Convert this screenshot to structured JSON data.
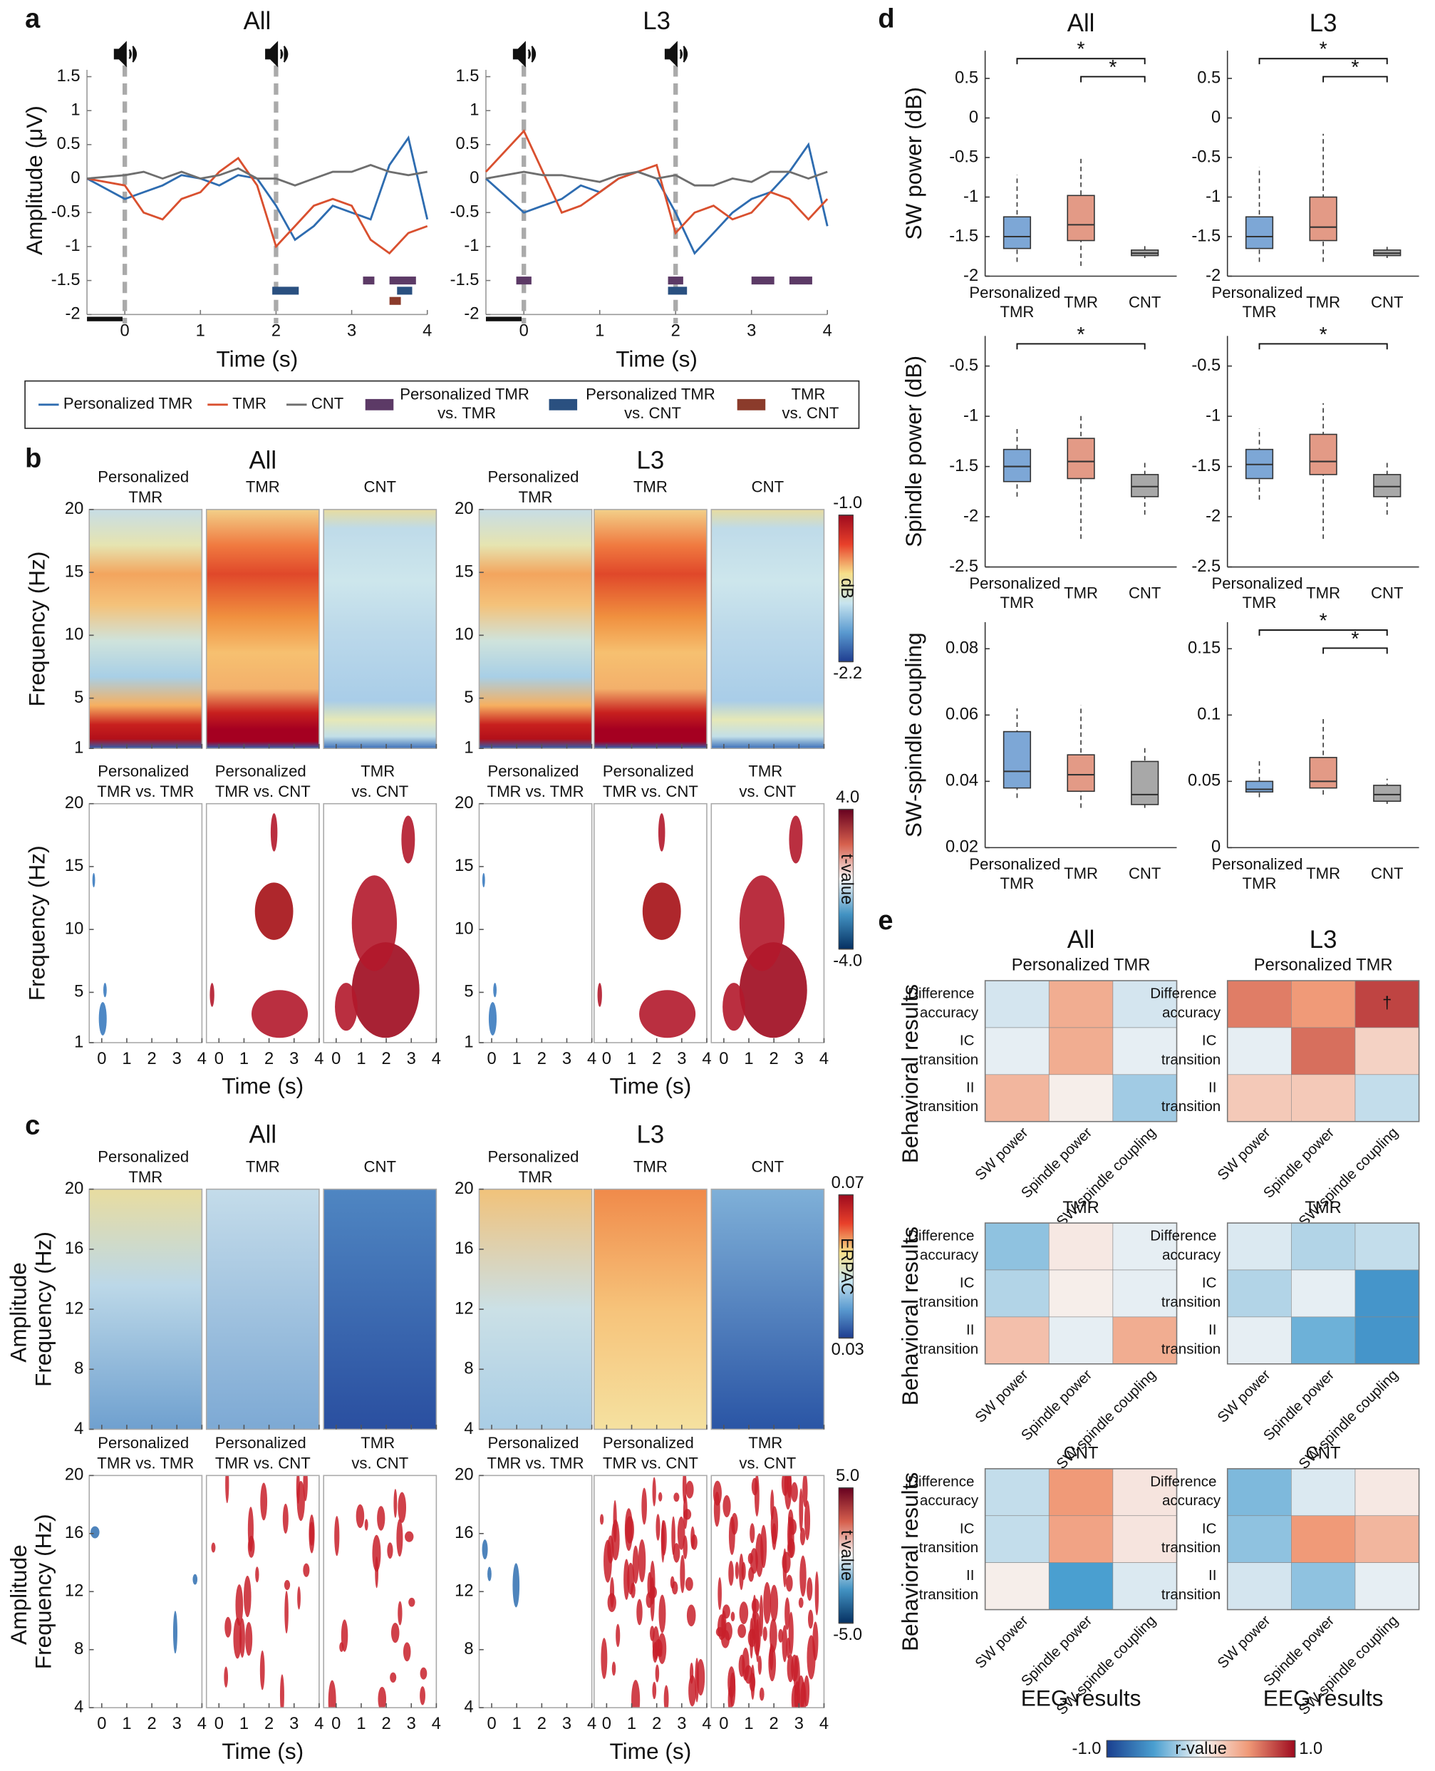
{
  "panel_labels": [
    "a",
    "b",
    "c",
    "d",
    "e"
  ],
  "chart_data": [
    {
      "type": "line",
      "title": "All",
      "xlabel": "Time (s)",
      "ylabel": "Amplitude (μV)",
      "xlim": [
        -0.5,
        4
      ],
      "xticks": [
        0,
        1,
        2,
        3,
        4
      ],
      "ylim": [
        -2,
        1.5
      ],
      "yticks": [
        -2,
        -1.5,
        -1,
        -0.5,
        0,
        0.5,
        1,
        1.5
      ],
      "stimuli": [
        0,
        2
      ],
      "x": [
        -0.5,
        0,
        0.25,
        0.5,
        0.75,
        1,
        1.25,
        1.5,
        1.75,
        2,
        2.25,
        2.5,
        2.75,
        3,
        3.25,
        3.5,
        3.75,
        4
      ],
      "series": [
        {
          "name": "Personalized TMR",
          "color": "#2e6cb0",
          "values": [
            0,
            -0.3,
            -0.2,
            -0.1,
            0.05,
            0,
            -0.1,
            0.05,
            0,
            -0.4,
            -0.9,
            -0.7,
            -0.4,
            -0.5,
            -0.6,
            0.2,
            0.6,
            -0.6
          ]
        },
        {
          "name": "TMR",
          "color": "#d9502f",
          "values": [
            0,
            -0.1,
            -0.5,
            -0.6,
            -0.3,
            -0.2,
            0.1,
            0.3,
            -0.1,
            -1.0,
            -0.7,
            -0.4,
            -0.3,
            -0.4,
            -0.9,
            -1.1,
            -0.8,
            -0.7
          ]
        },
        {
          "name": "CNT",
          "color": "#6e6e6e",
          "values": [
            0,
            0.05,
            0.1,
            0,
            0.1,
            0,
            0.05,
            0.15,
            0,
            0,
            -0.1,
            0,
            0.1,
            0.1,
            0.2,
            0.1,
            0.05,
            0.1
          ]
        }
      ],
      "clusters": [
        {
          "name": "Personalized TMR vs. TMR",
          "color": "#5c3a66",
          "y": -1.5,
          "intervals": [
            [
              3.15,
              3.3
            ],
            [
              3.5,
              3.85
            ]
          ]
        },
        {
          "name": "Personalized TMR vs. CNT",
          "color": "#2a5080",
          "y": -1.65,
          "intervals": [
            [
              1.95,
              2.3
            ],
            [
              3.6,
              3.8
            ]
          ]
        },
        {
          "name": "TMR vs. CNT",
          "color": "#8b3b2b",
          "y": -1.8,
          "intervals": [
            [
              3.5,
              3.65
            ]
          ]
        }
      ]
    },
    {
      "type": "line",
      "title": "L3",
      "xlabel": "Time (s)",
      "xlim": [
        -0.5,
        4
      ],
      "xticks": [
        0,
        1,
        2,
        3,
        4
      ],
      "ylim": [
        -2,
        1.5
      ],
      "yticks": [
        -2,
        -1.5,
        -1,
        -0.5,
        0,
        0.5,
        1,
        1.5
      ],
      "stimuli": [
        0,
        2
      ],
      "x": [
        -0.5,
        0,
        0.25,
        0.5,
        0.75,
        1,
        1.25,
        1.5,
        1.75,
        2,
        2.25,
        2.5,
        2.75,
        3,
        3.25,
        3.5,
        3.75,
        4
      ],
      "series": [
        {
          "name": "Personalized TMR",
          "color": "#2e6cb0",
          "values": [
            0,
            -0.5,
            -0.4,
            -0.3,
            -0.1,
            -0.2,
            0,
            0.1,
            0,
            -0.5,
            -1.1,
            -0.8,
            -0.5,
            -0.3,
            -0.2,
            0.1,
            0.5,
            -0.7
          ]
        },
        {
          "name": "TMR",
          "color": "#d9502f",
          "values": [
            0.1,
            0.7,
            0.1,
            -0.5,
            -0.4,
            -0.2,
            0,
            0.1,
            0.2,
            -0.8,
            -0.5,
            -0.4,
            -0.6,
            -0.5,
            -0.2,
            -0.3,
            -0.6,
            -0.3
          ]
        },
        {
          "name": "CNT",
          "color": "#6e6e6e",
          "values": [
            0,
            0.1,
            0.05,
            0.05,
            0,
            -0.05,
            0.05,
            0.1,
            0,
            0.05,
            -0.1,
            -0.1,
            0,
            -0.05,
            0.1,
            0.1,
            0,
            0.1
          ]
        }
      ],
      "clusters": [
        {
          "name": "Personalized TMR vs. TMR",
          "color": "#5c3a66",
          "y": -1.5,
          "intervals": [
            [
              -0.1,
              0.1
            ],
            [
              1.9,
              2.1
            ],
            [
              3.0,
              3.3
            ],
            [
              3.5,
              3.8
            ]
          ]
        },
        {
          "name": "Personalized TMR vs. CNT",
          "color": "#2a5080",
          "y": -1.65,
          "intervals": [
            [
              1.9,
              2.15
            ]
          ]
        }
      ]
    },
    {
      "type": "heatmap",
      "title": "All",
      "ylabel": "Frequency (Hz)",
      "xlabel": "Time (s)",
      "xlim": [
        -0.5,
        4
      ],
      "xticks": [
        0,
        1,
        2,
        3,
        4
      ],
      "ylim": [
        1,
        20
      ],
      "yticks": [
        1,
        5,
        10,
        15,
        20
      ],
      "panels": [
        "Personalized TMR",
        "TMR",
        "CNT"
      ],
      "contrast_panels": [
        "Personalized TMR vs. TMR",
        "Personalized TMR vs. CNT",
        "TMR vs. CNT"
      ]
    },
    {
      "type": "heatmap",
      "title": "L3",
      "xlabel": "Time (s)",
      "xlim": [
        -0.5,
        4
      ],
      "xticks": [
        0,
        1,
        2,
        3,
        4
      ],
      "ylim": [
        1,
        20
      ],
      "yticks": [
        1,
        5,
        10,
        15,
        20
      ],
      "panels": [
        "Personalized TMR",
        "TMR",
        "CNT"
      ],
      "contrast_panels": [
        "Personalized TMR vs. TMR",
        "Personalized TMR vs. CNT",
        "TMR vs. CNT"
      ],
      "colorbar": {
        "label": "dB",
        "lim": [
          -2.2,
          -1.0
        ],
        "ticks": [
          {
            "value": -1.0,
            "label": "-1.0"
          },
          {
            "value": -2.2,
            "label": "-2.2"
          }
        ]
      },
      "contrast_colorbar": {
        "label": "t-value",
        "lim": [
          -4,
          4
        ],
        "ticks": [
          {
            "value": 4,
            "label": "4.0"
          },
          {
            "value": -4,
            "label": "-4.0"
          }
        ]
      }
    },
    {
      "type": "heatmap",
      "title": "All",
      "ylabel": "Amplitude Frequency (Hz)",
      "xlabel": "Time (s)",
      "xlim": [
        -0.5,
        4
      ],
      "xticks": [
        0,
        1,
        2,
        3,
        4
      ],
      "ylim": [
        4,
        20
      ],
      "yticks": [
        4,
        8,
        12,
        16,
        20
      ],
      "panels": [
        "Personalized TMR",
        "TMR",
        "CNT"
      ],
      "contrast_panels": [
        "Personalized TMR vs. TMR",
        "Personalized TMR vs. CNT",
        "TMR vs. CNT"
      ]
    },
    {
      "type": "heatmap",
      "title": "L3",
      "xlabel": "Time (s)",
      "xlim": [
        -0.5,
        4
      ],
      "xticks": [
        0,
        1,
        2,
        3,
        4
      ],
      "ylim": [
        4,
        20
      ],
      "yticks": [
        4,
        8,
        12,
        16,
        20
      ],
      "panels": [
        "Personalized TMR",
        "TMR",
        "CNT"
      ],
      "contrast_panels": [
        "Personalized TMR vs. TMR",
        "Personalized TMR vs. CNT",
        "TMR vs. CNT"
      ],
      "colorbar": {
        "label": "ERPAC",
        "lim": [
          0.03,
          0.07
        ],
        "ticks": [
          0.07,
          0.03
        ]
      },
      "contrast_colorbar": {
        "label": "t-value",
        "lim": [
          -5,
          5
        ],
        "ticks": [
          {
            "value": 5,
            "label": "5.0"
          },
          {
            "value": -5,
            "label": "-5.0"
          }
        ]
      }
    },
    {
      "type": "box",
      "title": "All",
      "ylabel": "SW power (dB)",
      "categories": [
        "Personalized TMR",
        "TMR",
        "CNT"
      ],
      "ylim": [
        -2,
        0.85
      ],
      "yticks": [
        -2,
        -1.5,
        -1,
        -0.5,
        0,
        0.5
      ],
      "boxes": [
        {
          "color": "#7da7d6",
          "stats": [
            -1.82,
            -1.65,
            -1.5,
            -1.25,
            -0.72
          ]
        },
        {
          "color": "#e39a86",
          "stats": [
            -1.87,
            -1.55,
            -1.35,
            -0.98,
            -0.5
          ]
        },
        {
          "color": "#a8a8a8",
          "stats": [
            -1.77,
            -1.74,
            -1.71,
            -1.67,
            -1.62
          ]
        }
      ],
      "significance": [
        {
          "pair": [
            0,
            2
          ],
          "label": "*"
        },
        {
          "pair": [
            1,
            2
          ],
          "label": "*"
        }
      ]
    },
    {
      "type": "box",
      "title": "L3",
      "categories": [
        "Personalized TMR",
        "TMR",
        "CNT"
      ],
      "ylim": [
        -2,
        0.85
      ],
      "yticks": [
        -2,
        -1.5,
        -1,
        -0.5,
        0,
        0.5
      ],
      "boxes": [
        {
          "color": "#7da7d6",
          "stats": [
            -1.82,
            -1.65,
            -1.5,
            -1.25,
            -0.62
          ]
        },
        {
          "color": "#e39a86",
          "stats": [
            -1.82,
            -1.55,
            -1.38,
            -1.0,
            -0.2
          ]
        },
        {
          "color": "#a8a8a8",
          "stats": [
            -1.77,
            -1.74,
            -1.71,
            -1.67,
            -1.63
          ]
        }
      ],
      "significance": [
        {
          "pair": [
            0,
            2
          ],
          "label": "*"
        },
        {
          "pair": [
            1,
            2
          ],
          "label": "*"
        }
      ]
    },
    {
      "type": "box",
      "ylabel": "Spindle power (dB)",
      "categories": [
        "Personalized TMR",
        "TMR",
        "CNT"
      ],
      "ylim": [
        -2.5,
        -0.2
      ],
      "yticks": [
        -2.5,
        -2,
        -1.5,
        -1,
        -0.5
      ],
      "boxes": [
        {
          "color": "#7da7d6",
          "stats": [
            -1.8,
            -1.65,
            -1.5,
            -1.33,
            -1.12
          ]
        },
        {
          "color": "#e39a86",
          "stats": [
            -2.22,
            -1.62,
            -1.45,
            -1.22,
            -0.97
          ]
        },
        {
          "color": "#a8a8a8",
          "stats": [
            -1.98,
            -1.8,
            -1.7,
            -1.58,
            -1.45
          ]
        }
      ],
      "significance": [
        {
          "pair": [
            0,
            2
          ],
          "label": "*"
        }
      ]
    },
    {
      "type": "box",
      "categories": [
        "Personalized TMR",
        "TMR",
        "CNT"
      ],
      "ylim": [
        -2.5,
        -0.2
      ],
      "yticks": [
        -2.5,
        -2,
        -1.5,
        -1,
        -0.5
      ],
      "boxes": [
        {
          "color": "#7da7d6",
          "stats": [
            -1.83,
            -1.62,
            -1.48,
            -1.33,
            -1.12
          ]
        },
        {
          "color": "#e39a86",
          "stats": [
            -2.22,
            -1.58,
            -1.45,
            -1.18,
            -0.87
          ]
        },
        {
          "color": "#a8a8a8",
          "stats": [
            -1.98,
            -1.8,
            -1.7,
            -1.58,
            -1.45
          ]
        }
      ],
      "significance": [
        {
          "pair": [
            0,
            2
          ],
          "label": "*"
        }
      ]
    },
    {
      "type": "box",
      "ylabel": "SW-spindle coupling",
      "categories": [
        "Personalized TMR",
        "TMR",
        "CNT"
      ],
      "ylim": [
        0.02,
        0.088
      ],
      "yticks": [
        0.02,
        0.04,
        0.06,
        0.08
      ],
      "boxes": [
        {
          "color": "#7da7d6",
          "stats": [
            0.035,
            0.038,
            0.043,
            0.055,
            0.062
          ]
        },
        {
          "color": "#e39a86",
          "stats": [
            0.032,
            0.037,
            0.042,
            0.048,
            0.063
          ]
        },
        {
          "color": "#a8a8a8",
          "stats": [
            0.032,
            0.033,
            0.036,
            0.046,
            0.051
          ]
        }
      ],
      "significance": []
    },
    {
      "type": "box",
      "categories": [
        "Personalized TMR",
        "TMR",
        "CNT"
      ],
      "ylim": [
        0,
        0.17
      ],
      "yticks": [
        0,
        0.05,
        0.1,
        0.15
      ],
      "boxes": [
        {
          "color": "#7da7d6",
          "stats": [
            0.038,
            0.042,
            0.044,
            0.05,
            0.066
          ]
        },
        {
          "color": "#e39a86",
          "stats": [
            0.04,
            0.045,
            0.05,
            0.068,
            0.098
          ]
        },
        {
          "color": "#a8a8a8",
          "stats": [
            0.033,
            0.035,
            0.04,
            0.047,
            0.052
          ]
        }
      ],
      "significance": [
        {
          "pair": [
            0,
            2
          ],
          "label": "*"
        },
        {
          "pair": [
            1,
            2
          ],
          "label": "*"
        }
      ]
    },
    {
      "type": "matrix",
      "title": "All",
      "subtitle": "Personalized TMR",
      "ylabel": "Behavioral results",
      "rows": [
        "Difference accuracy",
        "IC transition",
        "II transition"
      ],
      "columns": [
        "SW power",
        "Spindle power",
        "SW-spindle coupling"
      ],
      "values": [
        [
          -0.1,
          0.4,
          -0.1
        ],
        [
          -0.05,
          0.4,
          -0.05
        ],
        [
          0.35,
          0.05,
          -0.25
        ]
      ]
    },
    {
      "type": "matrix",
      "title": "L3",
      "subtitle": "Personalized TMR",
      "rows": [
        "Difference accuracy",
        "IC transition",
        "II transition"
      ],
      "columns": [
        "SW power",
        "Spindle power",
        "SW-spindle coupling"
      ],
      "values": [
        [
          0.6,
          0.5,
          0.8
        ],
        [
          -0.05,
          0.65,
          0.2
        ],
        [
          0.25,
          0.25,
          -0.15
        ]
      ],
      "annotations": [
        {
          "row": 0,
          "column": 2,
          "text": "†"
        }
      ]
    },
    {
      "type": "matrix",
      "subtitle": "TMR",
      "ylabel": "Behavioral results",
      "rows": [
        "Difference accuracy",
        "IC transition",
        "II transition"
      ],
      "columns": [
        "SW power",
        "Spindle power",
        "SW-spindle coupling"
      ],
      "values": [
        [
          -0.3,
          0.08,
          -0.05
        ],
        [
          -0.2,
          0.05,
          -0.05
        ],
        [
          0.3,
          -0.05,
          0.4
        ]
      ]
    },
    {
      "type": "matrix",
      "subtitle": "TMR",
      "rows": [
        "Difference accuracy",
        "IC transition",
        "II transition"
      ],
      "columns": [
        "SW power",
        "Spindle power",
        "SW-spindle coupling"
      ],
      "values": [
        [
          -0.08,
          -0.2,
          -0.15
        ],
        [
          -0.2,
          -0.05,
          -0.55
        ],
        [
          -0.05,
          -0.4,
          -0.55
        ]
      ]
    },
    {
      "type": "matrix",
      "subtitle": "CNT",
      "ylabel": "Behavioral results",
      "xlabel": "EEG results",
      "rows": [
        "Difference accuracy",
        "IC transition",
        "II transition"
      ],
      "columns": [
        "SW power",
        "Spindle power",
        "SW-spindle coupling"
      ],
      "values": [
        [
          -0.15,
          0.5,
          0.1
        ],
        [
          -0.15,
          0.45,
          0.1
        ],
        [
          0.05,
          -0.5,
          -0.08
        ]
      ],
      "colorbar": {
        "label": "r-value",
        "lim": [
          -1,
          1
        ],
        "ticks": [
          {
            "value": -1,
            "label": "-1.0"
          },
          {
            "value": 1,
            "label": "1.0"
          }
        ]
      }
    },
    {
      "type": "matrix",
      "subtitle": "CNT",
      "xlabel": "EEG results",
      "rows": [
        "Difference accuracy",
        "IC transition",
        "II transition"
      ],
      "columns": [
        "SW power",
        "Spindle power",
        "SW-spindle coupling"
      ],
      "values": [
        [
          -0.35,
          -0.08,
          0.08
        ],
        [
          -0.3,
          0.5,
          0.35
        ],
        [
          -0.1,
          -0.3,
          -0.05
        ]
      ]
    }
  ]
}
